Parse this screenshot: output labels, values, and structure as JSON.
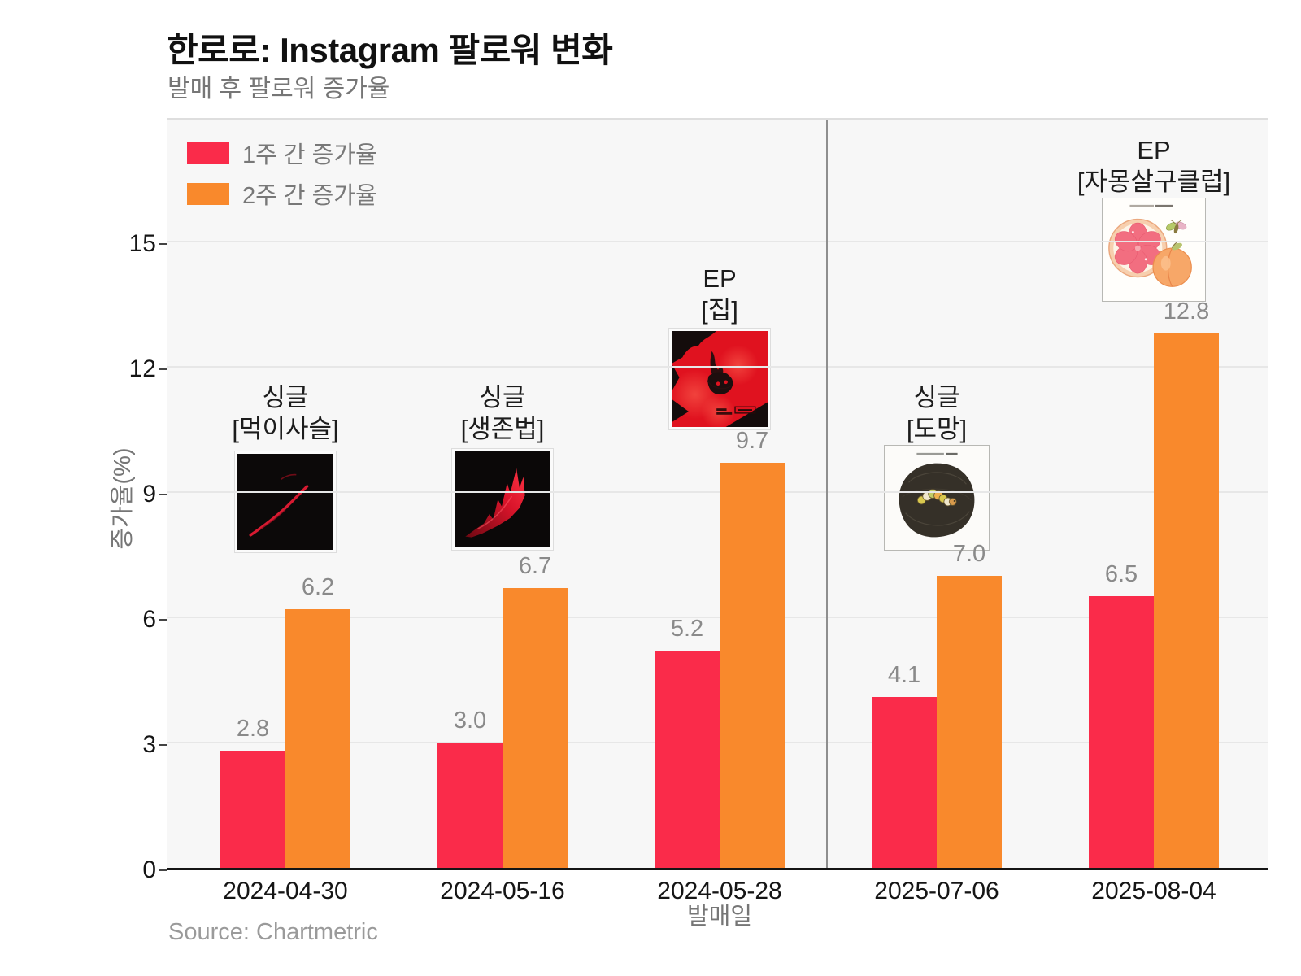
{
  "title": "한로로: Instagram 팔로워 변화",
  "subtitle": "발매 후 팔로워 증가율",
  "source": "Source: Chartmetric",
  "legend": [
    {
      "label": "1주 간 증가율",
      "color": "#fa2b4a"
    },
    {
      "label": "2주 간 증가율",
      "color": "#f9892c"
    }
  ],
  "axes": {
    "y_label": "증가율(%)",
    "y_ticks": [
      0,
      3,
      6,
      9,
      12,
      15
    ],
    "x_label": "발매일"
  },
  "chart_data": {
    "type": "bar",
    "title": "한로로: Instagram 팔로워 변화",
    "subtitle": "발매 후 팔로워 증가율",
    "xlabel": "발매일",
    "ylabel": "증가율(%)",
    "ylim": [
      0,
      18
    ],
    "grid": true,
    "legend_position": "top-left",
    "plot_background": "#f7f7f7",
    "categories": [
      "2024-04-30",
      "2024-05-16",
      "2024-05-28",
      "2025-07-06",
      "2025-08-04"
    ],
    "series": [
      {
        "name": "1주 간 증가율",
        "color": "#fa2b4a",
        "values": [
          2.8,
          3.0,
          5.2,
          4.1,
          6.5
        ]
      },
      {
        "name": "2주 간 증가율",
        "color": "#f9892c",
        "values": [
          6.2,
          6.7,
          9.7,
          7.0,
          12.8
        ]
      }
    ],
    "divider_between": [
      "2024-05-28",
      "2025-07-06"
    ],
    "annotations": [
      {
        "type_label": "싱글",
        "album": "[먹이사슬]"
      },
      {
        "type_label": "싱글",
        "album": "[생존법]"
      },
      {
        "type_label": "EP",
        "album": "[집]"
      },
      {
        "type_label": "싱글",
        "album": "[도망]"
      },
      {
        "type_label": "EP",
        "album": "[자몽살구클럽]"
      }
    ]
  }
}
